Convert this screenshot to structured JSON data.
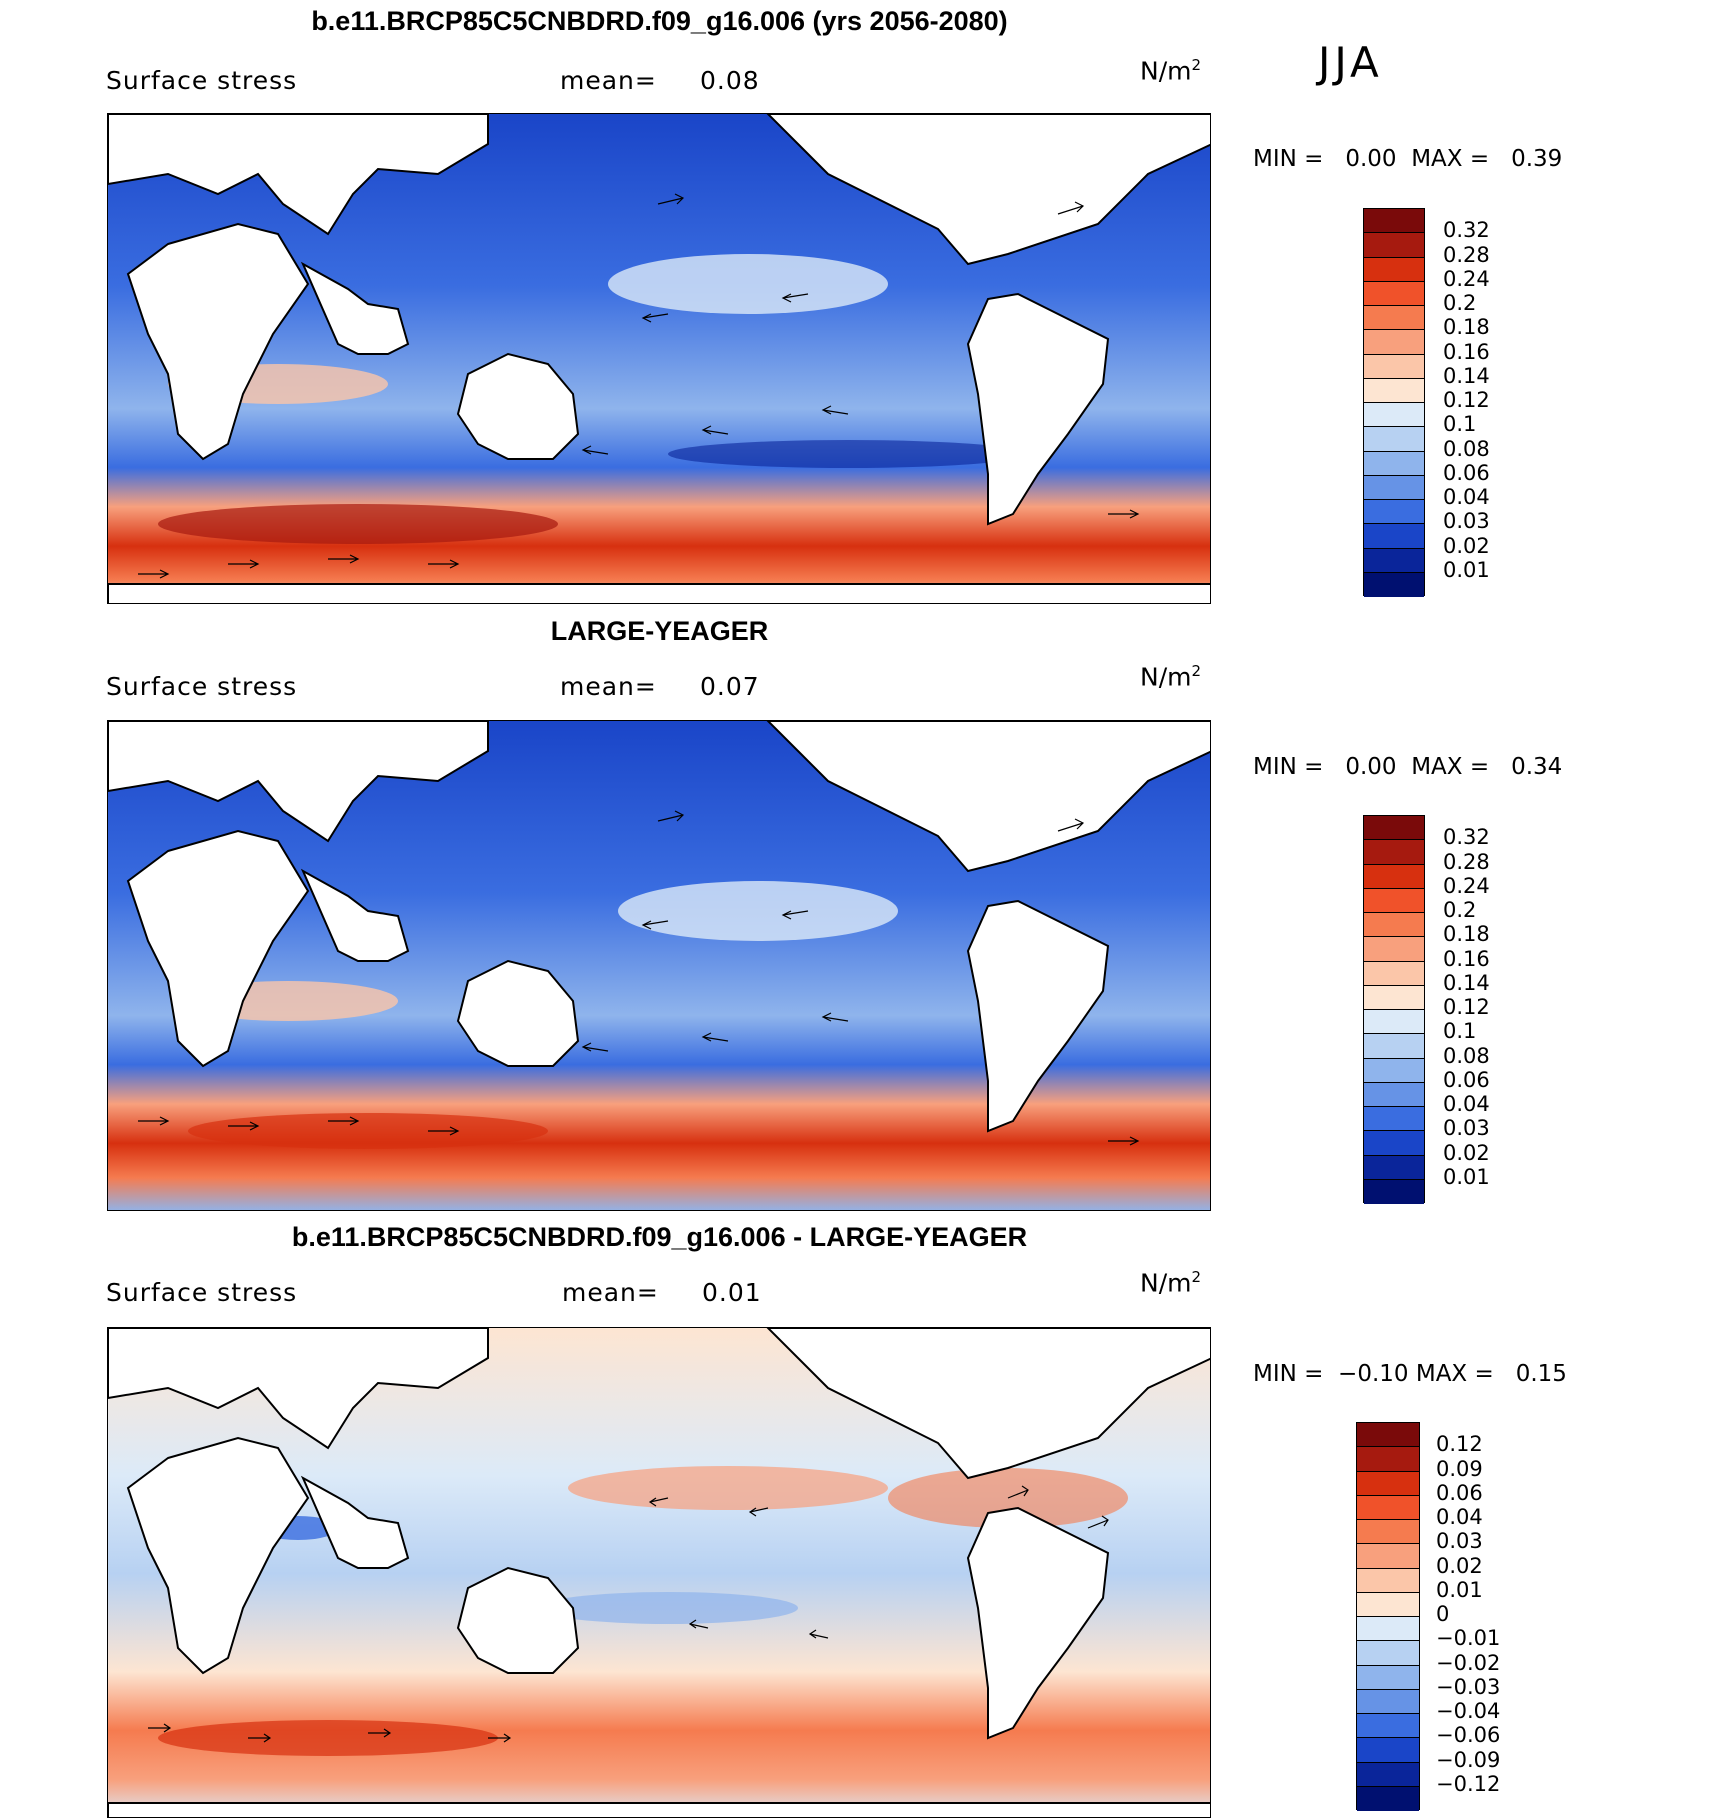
{
  "season": "JJA",
  "chart_data": [
    {
      "type": "heatmap",
      "title": "b.e11.BRCP85C5CNBDRD.f09_g16.006 (yrs 2056-2080)",
      "variable": "Surface stress",
      "mean_label": "mean=",
      "mean": "0.08",
      "units_base": "N/m",
      "units_exp": "2",
      "min_label": "MIN =",
      "min": "0.00",
      "max_label": "MAX =",
      "max": "0.39",
      "colorbar_levels": [
        "0.32",
        "0.28",
        "0.24",
        "0.2",
        "0.18",
        "0.16",
        "0.14",
        "0.12",
        "0.1",
        "0.08",
        "0.06",
        "0.04",
        "0.03",
        "0.02",
        "0.01"
      ],
      "colorbar_colors": [
        "#7a0a0a",
        "#a61a0f",
        "#d7300f",
        "#f0522a",
        "#f57b4f",
        "#f8a07d",
        "#fbc6a9",
        "#fde5d2",
        "#dceaf8",
        "#b7d1f2",
        "#8fb4ec",
        "#6693e6",
        "#3a6de0",
        "#1a45c8",
        "#0a259a",
        "#001070"
      ]
    },
    {
      "type": "heatmap",
      "title": "LARGE-YEAGER",
      "variable": "Surface stress",
      "mean_label": "mean=",
      "mean": "0.07",
      "units_base": "N/m",
      "units_exp": "2",
      "min_label": "MIN =",
      "min": "0.00",
      "max_label": "MAX =",
      "max": "0.34",
      "colorbar_levels": [
        "0.32",
        "0.28",
        "0.24",
        "0.2",
        "0.18",
        "0.16",
        "0.14",
        "0.12",
        "0.1",
        "0.08",
        "0.06",
        "0.04",
        "0.03",
        "0.02",
        "0.01"
      ],
      "colorbar_colors": [
        "#7a0a0a",
        "#a61a0f",
        "#d7300f",
        "#f0522a",
        "#f57b4f",
        "#f8a07d",
        "#fbc6a9",
        "#fde5d2",
        "#dceaf8",
        "#b7d1f2",
        "#8fb4ec",
        "#6693e6",
        "#3a6de0",
        "#1a45c8",
        "#0a259a",
        "#001070"
      ]
    },
    {
      "type": "heatmap",
      "title": "b.e11.BRCP85C5CNBDRD.f09_g16.006 - LARGE-YEAGER",
      "variable": "Surface stress",
      "mean_label": "mean=",
      "mean": "0.01",
      "units_base": "N/m",
      "units_exp": "2",
      "min_label": "MIN =",
      "min": "−0.10",
      "max_label": "MAX =",
      "max": "0.15",
      "colorbar_levels": [
        "0.12",
        "0.09",
        "0.06",
        "0.04",
        "0.03",
        "0.02",
        "0.01",
        "0",
        "−0.01",
        "−0.02",
        "−0.03",
        "−0.04",
        "−0.06",
        "−0.09",
        "−0.12"
      ],
      "colorbar_colors": [
        "#7a0a0a",
        "#a61a0f",
        "#d7300f",
        "#f0522a",
        "#f57b4f",
        "#f8a07d",
        "#fbc6a9",
        "#fde5d2",
        "#dceaf8",
        "#b7d1f2",
        "#8fb4ec",
        "#6693e6",
        "#3a6de0",
        "#1a45c8",
        "#0a259a",
        "#001070"
      ]
    }
  ]
}
